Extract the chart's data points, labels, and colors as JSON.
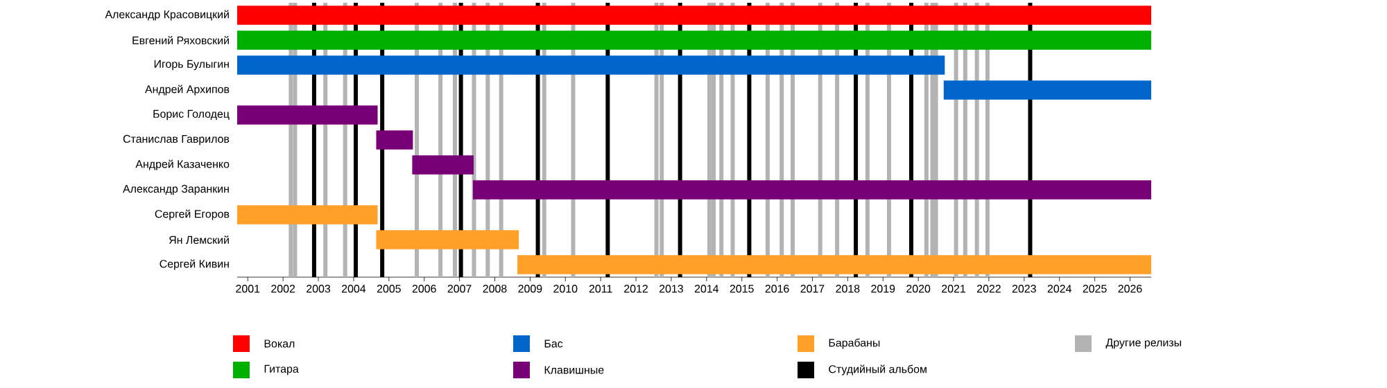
{
  "chart_data": {
    "type": "bar",
    "orientation": "horizontal",
    "categories": [
      "Александр Красовицкий",
      "Евгений Ряховский",
      "Игорь Булыгин",
      "Андрей Архипов",
      "Борис Голодец",
      "Станислав Гаврилов",
      "Андрей Казаченко",
      "Александр Заранкин",
      "Сергей Егоров",
      "Ян Лемский",
      "Сергей Кивин"
    ],
    "series": [
      {
        "name": "Вокал",
        "color": "#ff0000",
        "base": [
          2000.7,
          null,
          null,
          null,
          null,
          null,
          null,
          null,
          null,
          null,
          null
        ],
        "values": [
          25.9,
          null,
          null,
          null,
          null,
          null,
          null,
          null,
          null,
          null,
          null
        ]
      },
      {
        "name": "Гитара",
        "color": "#00b000",
        "base": [
          null,
          2000.7,
          null,
          null,
          null,
          null,
          null,
          null,
          null,
          null,
          null
        ],
        "values": [
          null,
          25.9,
          null,
          null,
          null,
          null,
          null,
          null,
          null,
          null,
          null
        ]
      },
      {
        "name": "Бас",
        "color": "#0066cc",
        "base": [
          null,
          null,
          2000.7,
          2020.72,
          null,
          null,
          null,
          null,
          null,
          null,
          null
        ],
        "values": [
          null,
          null,
          20.05,
          5.88,
          null,
          null,
          null,
          null,
          null,
          null,
          null
        ]
      },
      {
        "name": "Клавишные",
        "color": "#770077",
        "base": [
          null,
          null,
          null,
          null,
          2000.7,
          2004.64,
          2005.66,
          2007.38,
          null,
          null,
          null
        ],
        "values": [
          null,
          null,
          null,
          null,
          3.98,
          1.04,
          1.74,
          19.22,
          null,
          null,
          null
        ]
      },
      {
        "name": "Барабаны",
        "color": "#ffa028",
        "base": [
          null,
          null,
          null,
          null,
          null,
          null,
          null,
          null,
          2000.7,
          2004.64,
          2008.64
        ],
        "values": [
          null,
          null,
          null,
          null,
          null,
          null,
          null,
          null,
          3.98,
          4.04,
          17.96
        ]
      }
    ],
    "xlim": [
      2000.7,
      2026.6
    ],
    "xticks": [
      2001,
      2002,
      2003,
      2004,
      2005,
      2006,
      2007,
      2008,
      2009,
      2010,
      2011,
      2012,
      2013,
      2014,
      2015,
      2016,
      2017,
      2018,
      2019,
      2020,
      2021,
      2022,
      2023,
      2024,
      2025,
      2026
    ],
    "ref_lines": [
      {
        "axis": "x",
        "value": 2002.88,
        "color": "#000000",
        "label": "Студийный альбом"
      },
      {
        "axis": "x",
        "value": 2004.06,
        "color": "#000000"
      },
      {
        "axis": "x",
        "value": 2004.81,
        "color": "#000000"
      },
      {
        "axis": "x",
        "value": 2007.04,
        "color": "#000000"
      },
      {
        "axis": "x",
        "value": 2009.22,
        "color": "#000000"
      },
      {
        "axis": "x",
        "value": 2011.2,
        "color": "#000000"
      },
      {
        "axis": "x",
        "value": 2013.25,
        "color": "#000000"
      },
      {
        "axis": "x",
        "value": 2015.21,
        "color": "#000000"
      },
      {
        "axis": "x",
        "value": 2018.23,
        "color": "#000000"
      },
      {
        "axis": "x",
        "value": 2019.8,
        "color": "#000000"
      },
      {
        "axis": "x",
        "value": 2023.17,
        "color": "#000000"
      },
      {
        "axis": "x",
        "value": 2002.22,
        "color": "#b3b3b3",
        "label": "Другие релизы"
      },
      {
        "axis": "x",
        "value": 2002.34,
        "color": "#b3b3b3"
      },
      {
        "axis": "x",
        "value": 2003.2,
        "color": "#b3b3b3"
      },
      {
        "axis": "x",
        "value": 2003.76,
        "color": "#b3b3b3"
      },
      {
        "axis": "x",
        "value": 2005.79,
        "color": "#b3b3b3"
      },
      {
        "axis": "x",
        "value": 2006.46,
        "color": "#b3b3b3"
      },
      {
        "axis": "x",
        "value": 2006.87,
        "color": "#b3b3b3"
      },
      {
        "axis": "x",
        "value": 2007.41,
        "color": "#b3b3b3"
      },
      {
        "axis": "x",
        "value": 2007.8,
        "color": "#b3b3b3"
      },
      {
        "axis": "x",
        "value": 2008.18,
        "color": "#b3b3b3"
      },
      {
        "axis": "x",
        "value": 2009.4,
        "color": "#b3b3b3"
      },
      {
        "axis": "x",
        "value": 2010.22,
        "color": "#b3b3b3"
      },
      {
        "axis": "x",
        "value": 2012.58,
        "color": "#b3b3b3"
      },
      {
        "axis": "x",
        "value": 2012.73,
        "color": "#b3b3b3"
      },
      {
        "axis": "x",
        "value": 2014.08,
        "color": "#b3b3b3"
      },
      {
        "axis": "x",
        "value": 2014.2,
        "color": "#b3b3b3"
      },
      {
        "axis": "x",
        "value": 2014.42,
        "color": "#b3b3b3"
      },
      {
        "axis": "x",
        "value": 2014.74,
        "color": "#b3b3b3"
      },
      {
        "axis": "x",
        "value": 2015.73,
        "color": "#b3b3b3"
      },
      {
        "axis": "x",
        "value": 2016.13,
        "color": "#b3b3b3"
      },
      {
        "axis": "x",
        "value": 2016.44,
        "color": "#b3b3b3"
      },
      {
        "axis": "x",
        "value": 2017.22,
        "color": "#b3b3b3"
      },
      {
        "axis": "x",
        "value": 2017.7,
        "color": "#b3b3b3"
      },
      {
        "axis": "x",
        "value": 2018.56,
        "color": "#b3b3b3"
      },
      {
        "axis": "x",
        "value": 2019.17,
        "color": "#b3b3b3"
      },
      {
        "axis": "x",
        "value": 2020.23,
        "color": "#b3b3b3"
      },
      {
        "axis": "x",
        "value": 2020.4,
        "color": "#b3b3b3"
      },
      {
        "axis": "x",
        "value": 2020.5,
        "color": "#b3b3b3"
      },
      {
        "axis": "x",
        "value": 2021.07,
        "color": "#b3b3b3"
      },
      {
        "axis": "x",
        "value": 2021.33,
        "color": "#b3b3b3"
      },
      {
        "axis": "x",
        "value": 2021.66,
        "color": "#b3b3b3"
      },
      {
        "axis": "x",
        "value": 2021.96,
        "color": "#b3b3b3"
      }
    ],
    "legend": "bottom"
  }
}
